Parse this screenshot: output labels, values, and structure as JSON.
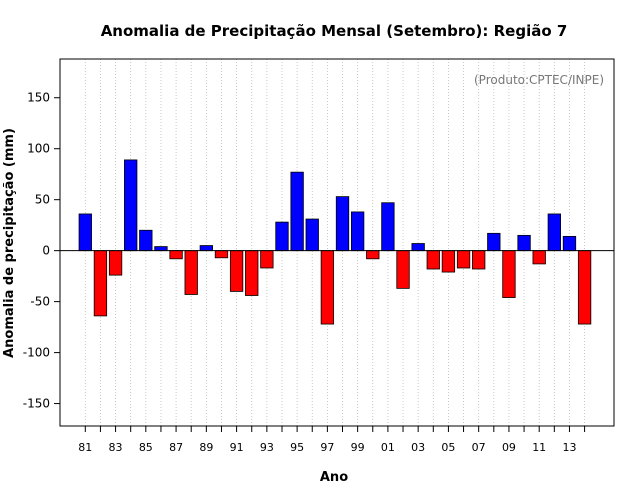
{
  "chart_data": {
    "type": "bar",
    "title": "Anomalia de Precipitação Mensal (Setembro): Região 7",
    "xlabel": "Ano",
    "ylabel": "Anomalia de precipitação (mm)",
    "credit": "(Produto:CPTEC/INPE)",
    "ylim": [
      -172,
      188
    ],
    "yticks": [
      -150,
      -100,
      -50,
      0,
      50,
      100,
      150
    ],
    "categories": [
      "81",
      "82",
      "83",
      "84",
      "85",
      "86",
      "87",
      "88",
      "89",
      "90",
      "91",
      "92",
      "93",
      "94",
      "95",
      "96",
      "97",
      "98",
      "99",
      "00",
      "01",
      "02",
      "03",
      "04",
      "05",
      "06",
      "07",
      "08",
      "09",
      "10",
      "11",
      "12",
      "13",
      "14"
    ],
    "xtick_labels": [
      "81",
      "83",
      "85",
      "87",
      "89",
      "91",
      "93",
      "95",
      "97",
      "99",
      "01",
      "03",
      "05",
      "07",
      "09",
      "11",
      "13"
    ],
    "values": [
      36,
      -64,
      -24,
      89,
      20,
      4,
      -8,
      -43,
      5,
      -7,
      -40,
      -44,
      -17,
      28,
      77,
      31,
      -72,
      53,
      38,
      -8,
      47,
      -37,
      7,
      -18,
      -21,
      -17,
      -18,
      17,
      -46,
      15,
      -13,
      36,
      14,
      -72
    ],
    "positive_color": "#0000ff",
    "negative_color": "#ff0000",
    "grid": "vertical dotted"
  }
}
